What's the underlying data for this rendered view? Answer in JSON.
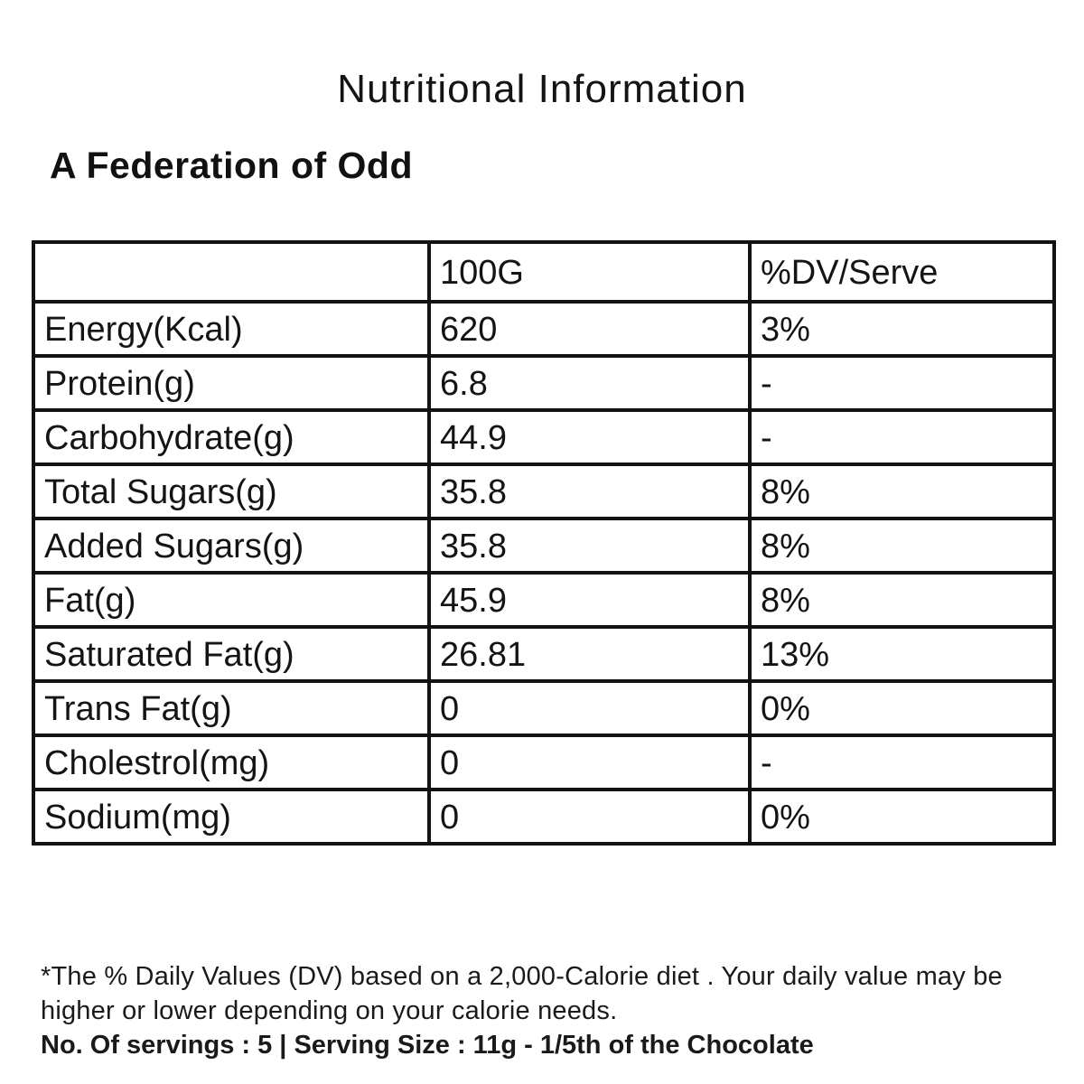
{
  "title": "Nutritional Information",
  "product_name": "A Federation of Odd",
  "table": {
    "columns": [
      "",
      "100G",
      "%DV/Serve"
    ],
    "rows": [
      {
        "label": "Energy(Kcal)",
        "per100g": "620",
        "dv": "3%"
      },
      {
        "label": "Protein(g)",
        "per100g": "6.8",
        "dv": "-"
      },
      {
        "label": "Carbohydrate(g)",
        "per100g": "44.9",
        "dv": "-"
      },
      {
        "label": "Total Sugars(g)",
        "per100g": "35.8",
        "dv": "8%"
      },
      {
        "label": "Added Sugars(g)",
        "per100g": "35.8",
        "dv": "8%"
      },
      {
        "label": "Fat(g)",
        "per100g": "45.9",
        "dv": "8%"
      },
      {
        "label": "Saturated Fat(g)",
        "per100g": "26.81",
        "dv": "13%"
      },
      {
        "label": "Trans Fat(g)",
        "per100g": "0",
        "dv": "0%"
      },
      {
        "label": "Cholestrol(mg)",
        "per100g": "0",
        "dv": "-"
      },
      {
        "label": "Sodium(mg)",
        "per100g": "0",
        "dv": "0%"
      }
    ]
  },
  "footnotes": {
    "dv_note_line1": "*The % Daily Values (DV) based on a 2,000-Calorie diet . Your daily value may be",
    "dv_note_line2": "higher or lower depending on your calorie needs.",
    "servings_note": "No. Of servings : 5 | Serving Size : 11g - 1/5th of the Chocolate"
  },
  "colors": {
    "text": "#141414",
    "border": "#131313",
    "background": "#ffffff"
  }
}
